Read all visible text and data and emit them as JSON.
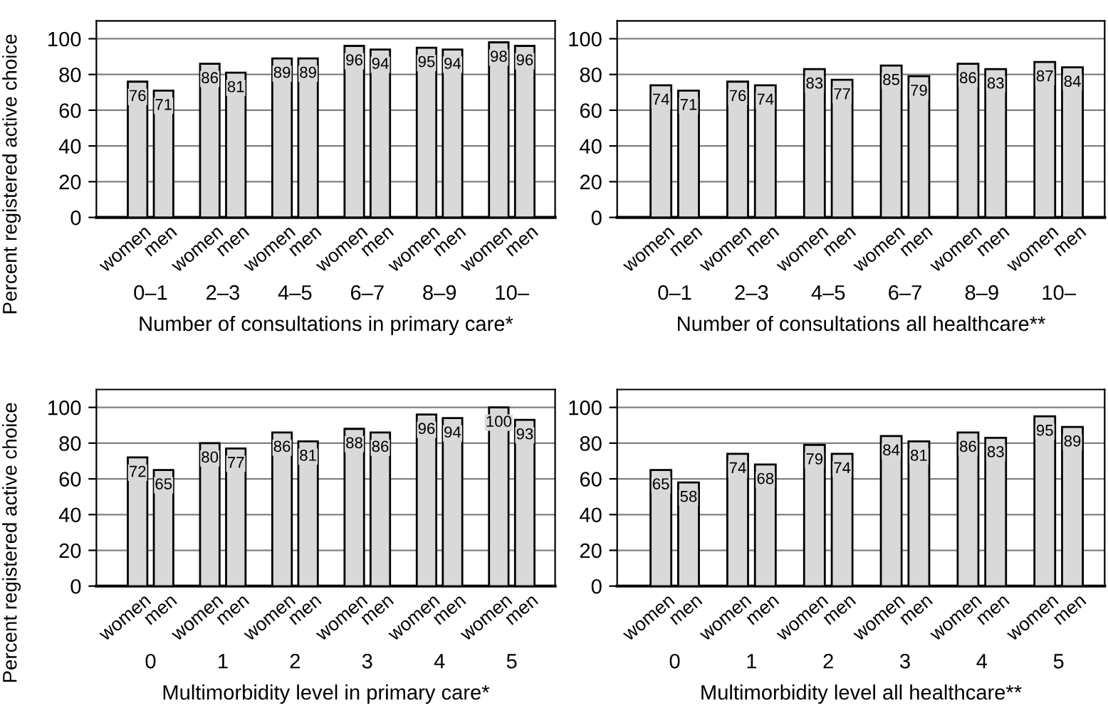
{
  "chart_data": [
    {
      "type": "bar",
      "xlabel": "Number of consultations in primary care*",
      "ylabel": "Percent registered active choice",
      "categories": [
        "0–1",
        "2–3",
        "4–5",
        "6–7",
        "8–9",
        "10–"
      ],
      "series": [
        {
          "name": "women",
          "color": "#d9d9d9",
          "values": [
            76,
            86,
            89,
            96,
            95,
            98
          ]
        },
        {
          "name": "men",
          "color": "#d9d9d9",
          "values": [
            71,
            81,
            89,
            94,
            94,
            96
          ]
        }
      ],
      "ylim": [
        0,
        110
      ],
      "yticks": [
        0,
        20,
        40,
        60,
        80,
        100
      ],
      "grid": "y",
      "data_labels": true,
      "legend": false
    },
    {
      "type": "bar",
      "xlabel": "Number of consultations all healthcare**",
      "categories": [
        "0–1",
        "2–3",
        "4–5",
        "6–7",
        "8–9",
        "10–"
      ],
      "series": [
        {
          "name": "women",
          "color": "#d9d9d9",
          "values": [
            74,
            76,
            83,
            85,
            86,
            87
          ]
        },
        {
          "name": "men",
          "color": "#d9d9d9",
          "values": [
            71,
            74,
            77,
            79,
            83,
            84
          ]
        }
      ],
      "ylim": [
        0,
        110
      ],
      "yticks": [
        0,
        20,
        40,
        60,
        80,
        100
      ],
      "grid": "y",
      "data_labels": true,
      "legend": false
    },
    {
      "type": "bar",
      "xlabel": "Multimorbidity level in primary care*",
      "ylabel": "Percent registered active choice",
      "categories": [
        "0",
        "1",
        "2",
        "3",
        "4",
        "5"
      ],
      "series": [
        {
          "name": "women",
          "color": "#d9d9d9",
          "values": [
            72,
            80,
            86,
            88,
            96,
            100
          ]
        },
        {
          "name": "men",
          "color": "#d9d9d9",
          "values": [
            65,
            77,
            81,
            86,
            94,
            93
          ]
        }
      ],
      "ylim": [
        0,
        110
      ],
      "yticks": [
        0,
        20,
        40,
        60,
        80,
        100
      ],
      "grid": "y",
      "data_labels": true,
      "legend": false
    },
    {
      "type": "bar",
      "xlabel": "Multimorbidity level all healthcare**",
      "categories": [
        "0",
        "1",
        "2",
        "3",
        "4",
        "5"
      ],
      "series": [
        {
          "name": "women",
          "color": "#d9d9d9",
          "values": [
            65,
            74,
            79,
            84,
            86,
            95
          ]
        },
        {
          "name": "men",
          "color": "#d9d9d9",
          "values": [
            58,
            68,
            74,
            81,
            83,
            89
          ]
        }
      ],
      "ylim": [
        0,
        110
      ],
      "yticks": [
        0,
        20,
        40,
        60,
        80,
        100
      ],
      "grid": "y",
      "data_labels": true,
      "legend": false
    }
  ]
}
